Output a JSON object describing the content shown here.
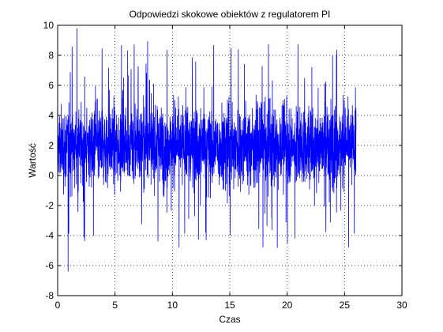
{
  "window": {
    "background": "#ffffff"
  },
  "chart_data": {
    "type": "line",
    "title": "Odpowiedzi skokowe obiektów z regulatorem PI",
    "xlabel": "Czas",
    "ylabel": "Wartość",
    "xlim": [
      0,
      30
    ],
    "ylim": [
      -8,
      10
    ],
    "xticks": [
      0,
      5,
      10,
      15,
      20,
      25,
      30
    ],
    "yticks": [
      -8,
      -6,
      -4,
      -2,
      0,
      2,
      4,
      6,
      8,
      10
    ],
    "xtick_labels": [
      "0",
      "5",
      "10",
      "15",
      "20",
      "25",
      "30"
    ],
    "ytick_labels": [
      "-8",
      "-6",
      "-4",
      "-2",
      "0",
      "2",
      "4",
      "6",
      "8",
      "10"
    ],
    "grid": true,
    "grid_style": "dotted",
    "series": [
      {
        "color": "#0000ff",
        "x_range": [
          0,
          26
        ],
        "mean": 2,
        "typical_band": [
          0,
          4
        ],
        "max": 9.8,
        "min": -6.4,
        "start_value": -4
      }
    ]
  }
}
